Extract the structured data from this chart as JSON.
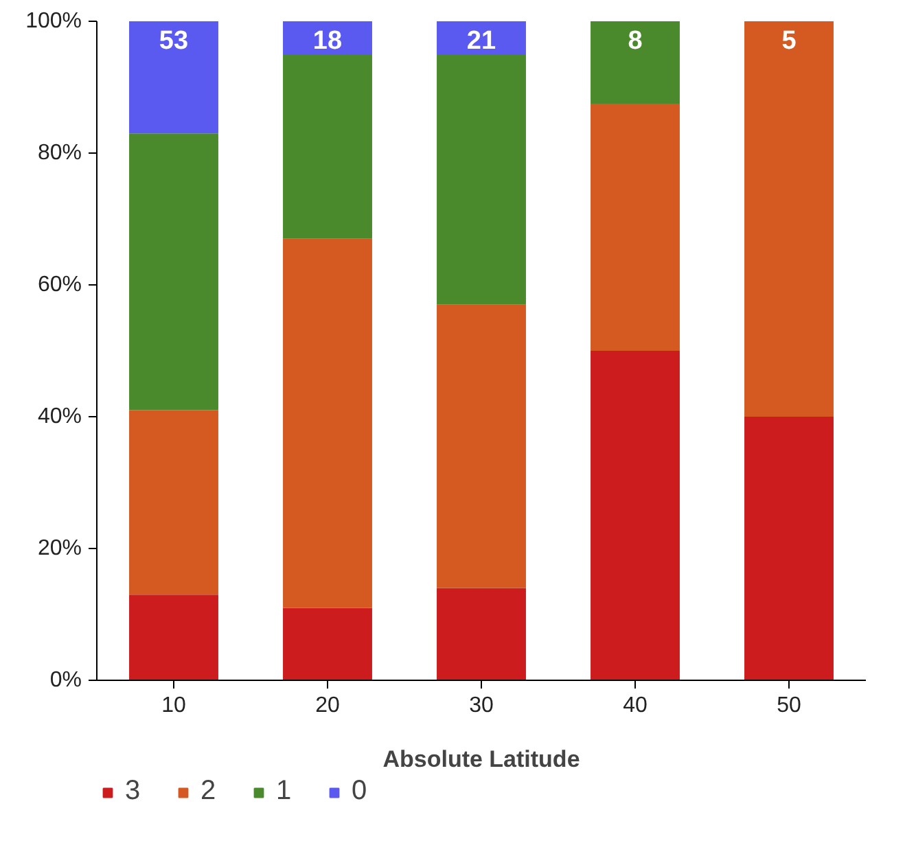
{
  "chart_data": {
    "type": "bar",
    "stacked": true,
    "xlabel": "Absolute Latitude",
    "categories": [
      "10",
      "20",
      "30",
      "40",
      "50"
    ],
    "series": [
      {
        "name": "3",
        "color": "#cc1c1e",
        "values": [
          13,
          11,
          14,
          50,
          40
        ]
      },
      {
        "name": "2",
        "color": "#d45a22",
        "values": [
          28,
          56,
          43,
          37.5,
          60
        ]
      },
      {
        "name": "1",
        "color": "#4a8a2c",
        "values": [
          42,
          28,
          38,
          12.5,
          0
        ]
      },
      {
        "name": "0",
        "color": "#5a5af0",
        "values": [
          17,
          5,
          5,
          0,
          0
        ]
      }
    ],
    "ylim": [
      0,
      100
    ],
    "yticks": [
      {
        "value": 0,
        "label": "0%"
      },
      {
        "value": 20,
        "label": "20%"
      },
      {
        "value": 40,
        "label": "40%"
      },
      {
        "value": 60,
        "label": "60%"
      },
      {
        "value": 80,
        "label": "80%"
      },
      {
        "value": 100,
        "label": "100%"
      }
    ],
    "grid": false,
    "legend": "bottom left",
    "annotations": [
      "53",
      "18",
      "21",
      "8",
      "5"
    ]
  }
}
